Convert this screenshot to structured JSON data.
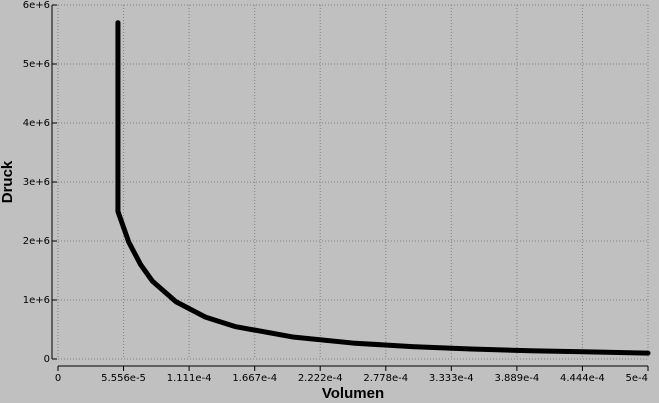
{
  "chart_data": {
    "type": "line",
    "x_label": "Volumen",
    "y_label": "Druck",
    "xlim": [
      0,
      0.0005
    ],
    "ylim": [
      0,
      6000000
    ],
    "xticks": [
      0,
      {
        "value": 5.556e-05,
        "label": "5.556e-5"
      },
      {
        "value": 0.0001111,
        "label": "1.111e-4"
      },
      {
        "value": 0.0001667,
        "label": "1.667e-4"
      },
      {
        "value": 0.0002222,
        "label": "2.222e-4"
      },
      {
        "value": 0.0002778,
        "label": "2.778e-4"
      },
      {
        "value": 0.0003333,
        "label": "3.333e-4"
      },
      {
        "value": 0.0003889,
        "label": "3.889e-4"
      },
      {
        "value": 0.0004444,
        "label": "4.444e-4"
      },
      {
        "value": 0.0005,
        "label": "5e-4"
      }
    ],
    "yticks": [
      0,
      {
        "value": 1000000,
        "label": "1e+6"
      },
      {
        "value": 2000000,
        "label": "2e+6"
      },
      {
        "value": 3000000,
        "label": "3e+6"
      },
      {
        "value": 4000000,
        "label": "4e+6"
      },
      {
        "value": 5000000,
        "label": "5e+6"
      },
      {
        "value": 6000000,
        "label": "6e+6"
      }
    ],
    "grid": true,
    "series": [
      {
        "color": "#000000",
        "x": [
          5.08e-05,
          5.08e-05,
          6e-05,
          7e-05,
          8e-05,
          0.0001,
          0.000125,
          0.00015,
          0.0002,
          0.00025,
          0.0003,
          0.00035,
          0.0004,
          0.00045,
          0.0005
        ],
        "values": [
          5700000,
          2500000,
          1980000,
          1600000,
          1320000,
          970000,
          710000,
          550000,
          370000,
          270000,
          210000,
          170000,
          140000,
          120000,
          100000
        ]
      }
    ]
  }
}
